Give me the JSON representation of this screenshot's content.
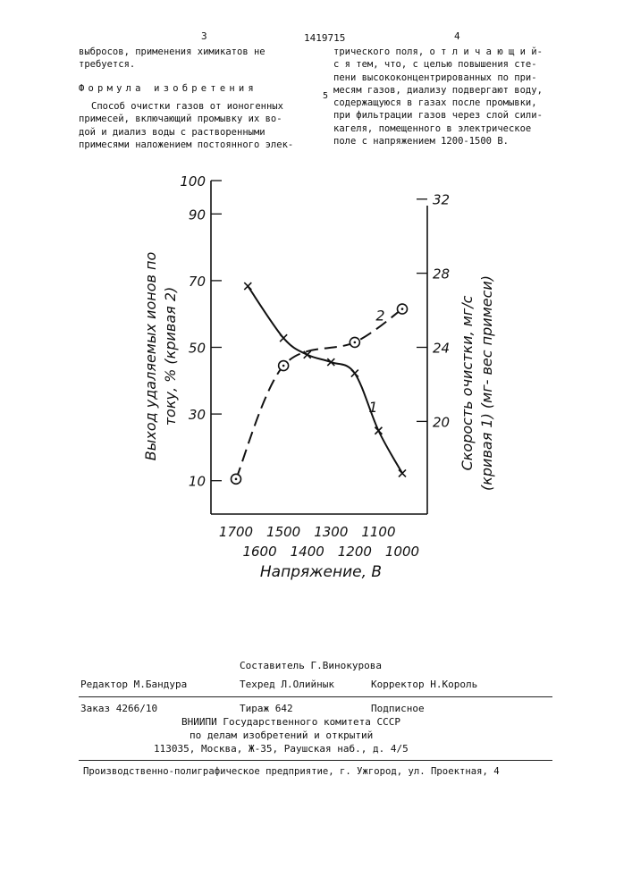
{
  "header": {
    "page_left": "3",
    "patent_number": "1419715",
    "page_right": "4"
  },
  "left_column": {
    "lines": [
      "выбросов, применения химикатов не",
      "требуется."
    ],
    "heading": "Формула изобретения",
    "claim_lines": [
      "Способ очистки газов от ионогенных",
      "примесей, включающий промывку их во-",
      "дой и диализ воды с растворенными",
      "примесями наложением постоянного элек-"
    ]
  },
  "right_column": {
    "lines": [
      "трического поля, о т л и ч а ю щ и й-",
      "с я тем, что, с целью повышения сте-",
      "пени высококонцентрированных по при-",
      "месям газов, диализу подвергают воду,",
      "содержащуюся в газах после промывки,",
      "при фильтрации газов через слой сили-",
      "кагеля, помещенного в электрическое",
      "поле с напряжением 1200-1500 В."
    ],
    "line_marker": "5"
  },
  "chart_data": {
    "type": "line",
    "xlabel": "Напряжение, В",
    "ylabel_left": [
      "Выход удаляемых ионов по",
      "току, % (кривая 2)"
    ],
    "ylabel_right": [
      "Скорость очистки, мг/с",
      "(кривая 1) (мг- вес примеси)"
    ],
    "x_ticks_top": [
      "1700",
      "1500",
      "1300",
      "1100"
    ],
    "x_ticks_bottom": [
      "1600",
      "1400",
      "1200",
      "1000"
    ],
    "y_left_ticks": [
      "100",
      "90",
      "70",
      "50",
      "30",
      "10"
    ],
    "y_right_ticks": [
      "32",
      "28",
      "24",
      "20"
    ],
    "xlim": [
      1700,
      1000
    ],
    "ylim_left": [
      0,
      100
    ],
    "ylim_right": [
      15,
      33
    ],
    "series": [
      {
        "name": "1",
        "axis": "right",
        "marker": "cross",
        "x": [
          1650,
          1500,
          1400,
          1300,
          1200,
          1100,
          1000
        ],
        "y": [
          27.3,
          24.5,
          23.6,
          23.2,
          22.6,
          19.5,
          17.2
        ]
      },
      {
        "name": "2",
        "axis": "left",
        "marker": "circle-dot",
        "x": [
          1700,
          1500,
          1200,
          1000
        ],
        "y": [
          10.5,
          44.5,
          51.5,
          61.5
        ]
      }
    ]
  },
  "footer": {
    "compiler": "Составитель Г.Винокурова",
    "editor": "Редактор М.Бандура",
    "techred": "Техред Л.Олийнык",
    "corrector": "Корректор Н.Король",
    "order": "Заказ 4266/10",
    "circulation": "Тираж 642",
    "subscription": "Подписное",
    "org_line1": "ВНИИПИ Государственного комитета СССР",
    "org_line2": "по делам изобретений и открытий",
    "address": "113035, Москва, Ж-35, Раушская наб., д. 4/5",
    "printer": "Производственно-полиграфическое предприятие, г. Ужгород, ул. Проектная, 4"
  }
}
